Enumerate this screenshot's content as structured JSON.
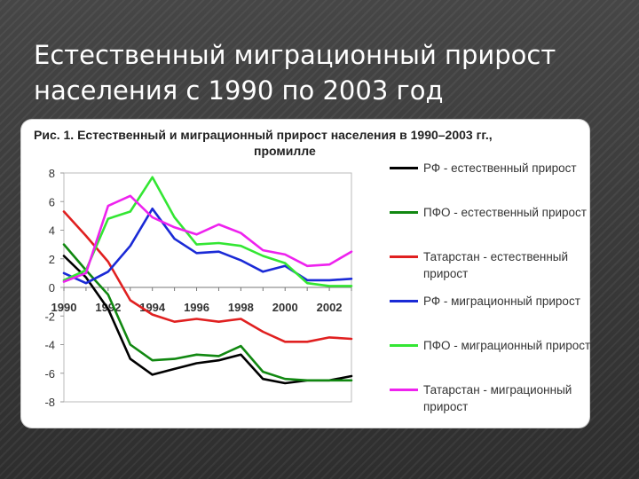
{
  "slide": {
    "title_line1": "Естественный миграционный прирост",
    "title_line2": "населения с 1990 по 2003 год"
  },
  "chart_data": {
    "type": "line",
    "title": "Рис. 1. Естественный и миграционный прирост населения в 1990–2003 гг.,",
    "subtitle": "промилле",
    "x": [
      1990,
      1991,
      1992,
      1993,
      1994,
      1995,
      1996,
      1997,
      1998,
      1999,
      2000,
      2001,
      2002,
      2003
    ],
    "x_tick_labels": [
      "1990",
      "1992",
      "1994",
      "1996",
      "1998",
      "2000",
      "2002"
    ],
    "x_tick_values": [
      1990,
      1992,
      1994,
      1996,
      1998,
      2000,
      2002
    ],
    "y_ticks": [
      8,
      6,
      4,
      2,
      0,
      -2,
      -4,
      -6,
      -8
    ],
    "ylim": [
      -8,
      8
    ],
    "xlim": [
      1990,
      2003
    ],
    "legend_position": "right",
    "series": [
      {
        "name": "РФ - естественный прирост",
        "color": "#000000",
        "values": [
          2.2,
          0.7,
          -1.5,
          -5.0,
          -6.1,
          -5.7,
          -5.3,
          -5.1,
          -4.7,
          -6.4,
          -6.7,
          -6.5,
          -6.5,
          -6.2
        ]
      },
      {
        "name": "ПФО - естественный прирост",
        "color": "#118811",
        "values": [
          3.0,
          1.2,
          -0.5,
          -4.0,
          -5.1,
          -5.0,
          -4.7,
          -4.8,
          -4.1,
          -5.9,
          -6.4,
          -6.5,
          -6.5,
          -6.5
        ]
      },
      {
        "name": "Татарстан - естественный прирост",
        "color": "#e02020",
        "values": [
          5.3,
          3.6,
          1.8,
          -0.9,
          -1.9,
          -2.4,
          -2.2,
          -2.4,
          -2.2,
          -3.1,
          -3.8,
          -3.8,
          -3.5,
          -3.6
        ]
      },
      {
        "name": "РФ - миграционный прирост",
        "color": "#1a2ad6",
        "values": [
          1.0,
          0.3,
          1.1,
          2.9,
          5.5,
          3.4,
          2.4,
          2.5,
          1.9,
          1.1,
          1.5,
          0.5,
          0.5,
          0.6
        ]
      },
      {
        "name": "ПФО - миграционный прирост",
        "color": "#33e633",
        "values": [
          0.5,
          1.2,
          4.8,
          5.3,
          7.7,
          4.9,
          3.0,
          3.1,
          2.9,
          2.2,
          1.7,
          0.3,
          0.1,
          0.1
        ]
      },
      {
        "name": "Татарстан - миграционный прирост",
        "color": "#ee22ee",
        "values": [
          0.4,
          1.0,
          5.7,
          6.4,
          4.9,
          4.2,
          3.7,
          4.4,
          3.8,
          2.6,
          2.3,
          1.5,
          1.6,
          2.5
        ]
      }
    ]
  }
}
